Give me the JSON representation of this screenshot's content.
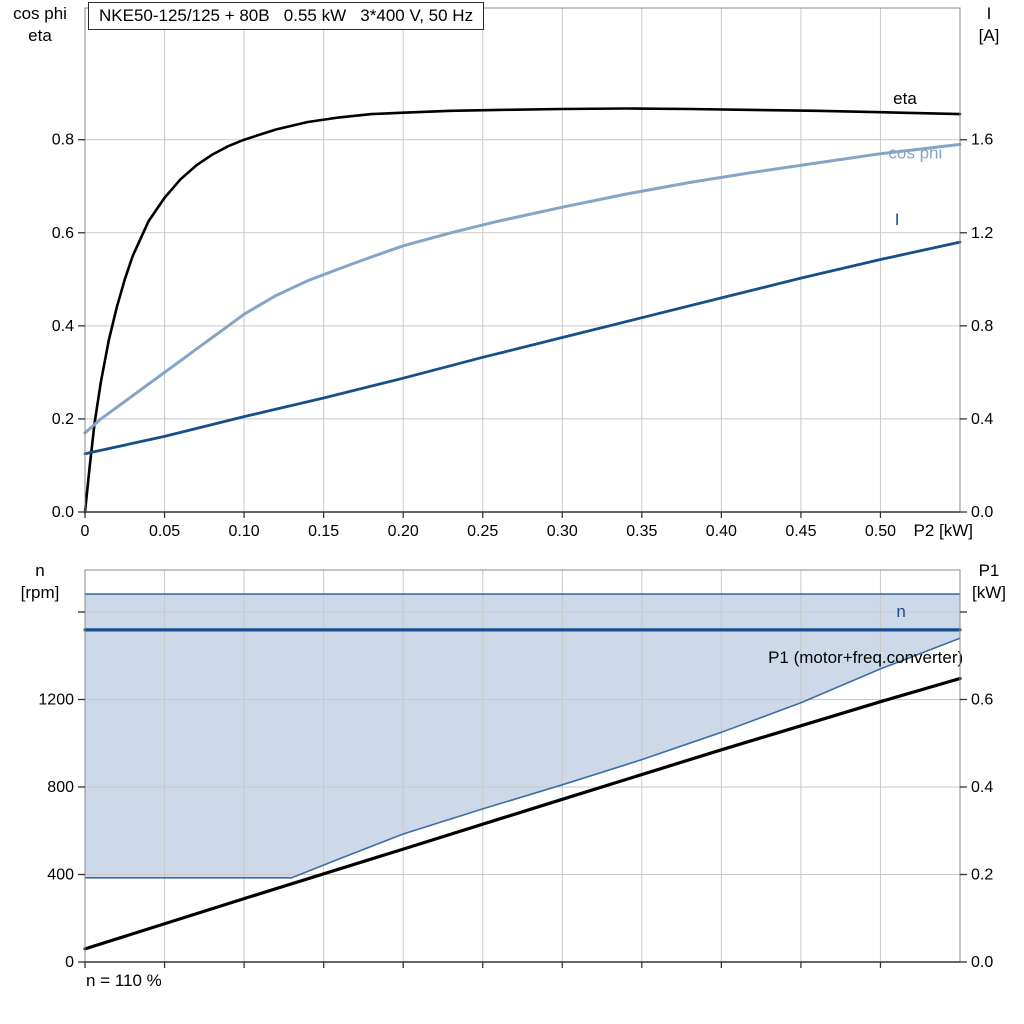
{
  "colors": {
    "eta": "#000000",
    "cos_phi": "#84a5c6",
    "current": "#164f8c",
    "speed": "#164f8c",
    "p1": "#000000",
    "band_fill": "#cdd9e8",
    "band_edge": "#3c6ea5",
    "grid": "#c9c9c9",
    "axis": "#8a8a8a",
    "tick": "#333333",
    "text": "#000000"
  },
  "chart_data": [
    {
      "type": "line",
      "title": "NKE50-125/125 + 80B   0.55 kW   3*400 V, 50 Hz",
      "x_axis": {
        "label": "P2 [kW]",
        "min": 0,
        "max": 0.55,
        "ticks": [
          0,
          0.05,
          0.1,
          0.15,
          0.2,
          0.25,
          0.3,
          0.35,
          0.4,
          0.45,
          0.5
        ],
        "tick_labels": [
          "0",
          "0.05",
          "0.10",
          "0.15",
          "0.20",
          "0.25",
          "0.30",
          "0.35",
          "0.40",
          "0.45",
          "0.50"
        ]
      },
      "y_left": {
        "title_lines": [
          "cos phi",
          "eta"
        ],
        "min": 0,
        "max": 1.083,
        "ticks": [
          0,
          0.2,
          0.4,
          0.6,
          0.8
        ],
        "tick_labels": [
          "0.0",
          "0.2",
          "0.4",
          "0.6",
          "0.8"
        ]
      },
      "y_right": {
        "title_lines": [
          "I",
          "[A]"
        ],
        "min": 0,
        "max": 2.166,
        "ticks": [
          0,
          0.4,
          0.8,
          1.2,
          1.6
        ],
        "tick_labels": [
          "0.0",
          "0.4",
          "0.8",
          "1.2",
          "1.6"
        ]
      },
      "grid": true,
      "series": [
        {
          "id": "eta",
          "name": "eta",
          "axis": "left",
          "color": "eta",
          "width": 2.6,
          "label": {
            "text": "eta",
            "at": [
              0.508,
              0.877
            ],
            "anchor": "start",
            "color": "eta"
          },
          "points": [
            [
              0,
              0
            ],
            [
              0.003,
              0.1
            ],
            [
              0.006,
              0.19
            ],
            [
              0.01,
              0.28
            ],
            [
              0.015,
              0.37
            ],
            [
              0.02,
              0.44
            ],
            [
              0.025,
              0.5
            ],
            [
              0.03,
              0.55
            ],
            [
              0.04,
              0.625
            ],
            [
              0.05,
              0.675
            ],
            [
              0.06,
              0.715
            ],
            [
              0.07,
              0.745
            ],
            [
              0.08,
              0.768
            ],
            [
              0.09,
              0.786
            ],
            [
              0.1,
              0.8
            ],
            [
              0.12,
              0.822
            ],
            [
              0.14,
              0.838
            ],
            [
              0.16,
              0.848
            ],
            [
              0.18,
              0.855
            ],
            [
              0.2,
              0.858
            ],
            [
              0.23,
              0.862
            ],
            [
              0.26,
              0.864
            ],
            [
              0.3,
              0.866
            ],
            [
              0.34,
              0.867
            ],
            [
              0.38,
              0.866
            ],
            [
              0.42,
              0.864
            ],
            [
              0.46,
              0.862
            ],
            [
              0.5,
              0.859
            ],
            [
              0.55,
              0.855
            ]
          ]
        },
        {
          "id": "cos-phi",
          "name": "cos phi",
          "axis": "left",
          "color": "cos_phi",
          "width": 3,
          "label": {
            "text": "cos phi",
            "at": [
              0.505,
              0.76
            ],
            "anchor": "start",
            "color": "cos_phi"
          },
          "points": [
            [
              0,
              0.17
            ],
            [
              0.01,
              0.2
            ],
            [
              0.02,
              0.225
            ],
            [
              0.03,
              0.25
            ],
            [
              0.04,
              0.275
            ],
            [
              0.05,
              0.3
            ],
            [
              0.06,
              0.325
            ],
            [
              0.07,
              0.35
            ],
            [
              0.08,
              0.375
            ],
            [
              0.09,
              0.4
            ],
            [
              0.1,
              0.425
            ],
            [
              0.12,
              0.465
            ],
            [
              0.14,
              0.497
            ],
            [
              0.16,
              0.523
            ],
            [
              0.18,
              0.548
            ],
            [
              0.2,
              0.572
            ],
            [
              0.23,
              0.6
            ],
            [
              0.26,
              0.625
            ],
            [
              0.3,
              0.655
            ],
            [
              0.34,
              0.683
            ],
            [
              0.38,
              0.708
            ],
            [
              0.42,
              0.73
            ],
            [
              0.46,
              0.75
            ],
            [
              0.5,
              0.77
            ],
            [
              0.55,
              0.79
            ]
          ]
        },
        {
          "id": "current",
          "name": "I",
          "axis": "right",
          "color": "current",
          "width": 2.8,
          "label": {
            "text": "I",
            "at": [
              0.509,
              1.233
            ],
            "anchor": "start",
            "color": "current"
          },
          "points": [
            [
              0,
              0.25
            ],
            [
              0.05,
              0.325
            ],
            [
              0.1,
              0.41
            ],
            [
              0.15,
              0.49
            ],
            [
              0.2,
              0.575
            ],
            [
              0.25,
              0.665
            ],
            [
              0.3,
              0.75
            ],
            [
              0.35,
              0.835
            ],
            [
              0.4,
              0.92
            ],
            [
              0.45,
              1.005
            ],
            [
              0.5,
              1.085
            ],
            [
              0.55,
              1.16
            ]
          ]
        }
      ]
    },
    {
      "type": "line",
      "footnote": "n = 110 %",
      "x_axis": {
        "label": "",
        "min": 0,
        "max": 0.55,
        "ticks": [
          0,
          0.05,
          0.1,
          0.15,
          0.2,
          0.25,
          0.3,
          0.35,
          0.4,
          0.45,
          0.5
        ],
        "tick_labels": [
          "",
          "",
          "",
          "",
          "",
          "",
          "",
          "",
          "",
          "",
          ""
        ]
      },
      "y_left": {
        "title_lines": [
          "n",
          "[rpm]"
        ],
        "min": 0,
        "max": 1792,
        "ticks": [
          0,
          400,
          800,
          1200,
          1600
        ],
        "tick_labels": [
          "0",
          "400",
          "800",
          "1200",
          ""
        ]
      },
      "y_right": {
        "title_lines": [
          "P1",
          "[kW]"
        ],
        "min": 0,
        "max": 0.896,
        "ticks": [
          0,
          0.2,
          0.4,
          0.6,
          0.8
        ],
        "tick_labels": [
          "0.0",
          "0.2",
          "0.4",
          "0.6",
          ""
        ]
      },
      "grid": true,
      "bands": [
        {
          "name": "speed-range",
          "axis": "left",
          "fill": "band_fill",
          "edge": "band_edge",
          "edge_width": 1.6,
          "upper": [
            [
              0,
              1682
            ],
            [
              0.55,
              1682
            ]
          ],
          "lower": [
            [
              0,
              385
            ],
            [
              0.13,
              385
            ],
            [
              0.16,
              472
            ],
            [
              0.2,
              585
            ],
            [
              0.25,
              700
            ],
            [
              0.3,
              810
            ],
            [
              0.35,
              925
            ],
            [
              0.4,
              1050
            ],
            [
              0.45,
              1185
            ],
            [
              0.5,
              1340
            ],
            [
              0.55,
              1480
            ]
          ]
        }
      ],
      "series": [
        {
          "id": "speed",
          "name": "n",
          "axis": "left",
          "color": "speed",
          "width": 3.2,
          "label": {
            "text": "n",
            "at": [
              0.51,
              1577
            ],
            "anchor": "start",
            "color": "speed"
          },
          "points": [
            [
              0,
              1518
            ],
            [
              0.55,
              1518
            ]
          ]
        },
        {
          "id": "p1",
          "name": "P1 (motor+freq.converter)",
          "axis": "right",
          "color": "p1",
          "width": 3.2,
          "label": {
            "text": "P1 (motor+freq.converter)",
            "at": [
              0.552,
              0.6835
            ],
            "anchor": "end",
            "color": "p1"
          },
          "points": [
            [
              0,
              0.03
            ],
            [
              0.1,
              0.145
            ],
            [
              0.2,
              0.258
            ],
            [
              0.3,
              0.372
            ],
            [
              0.4,
              0.485
            ],
            [
              0.5,
              0.595
            ],
            [
              0.55,
              0.648
            ]
          ]
        }
      ]
    }
  ]
}
